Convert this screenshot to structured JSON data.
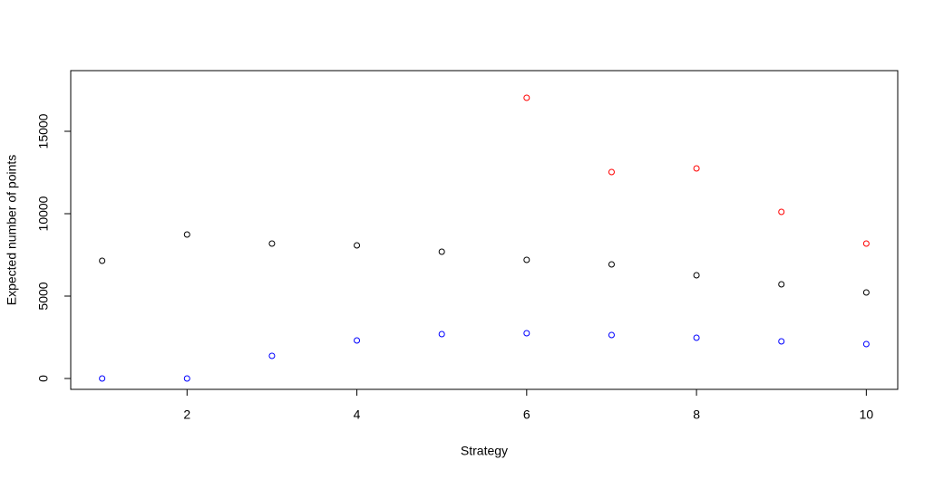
{
  "chart_data": {
    "type": "scatter",
    "x_label": "Strategy",
    "y_label": "Expected number of points",
    "x": [
      1,
      2,
      3,
      4,
      5,
      6,
      7,
      8,
      9,
      10
    ],
    "series": [
      {
        "color": "#000000",
        "values": [
          7143,
          8736,
          8187,
          8077,
          7692,
          7198,
          6923,
          6264,
          5714,
          5220
        ]
      },
      {
        "color": "#0000ff",
        "values": [
          0,
          0,
          1374,
          2308,
          2692,
          2747,
          2637,
          2473,
          2253,
          2088
        ]
      },
      {
        "color": "#ff0000",
        "values": [
          null,
          null,
          null,
          null,
          null,
          17033,
          12527,
          12747,
          10110,
          8187
        ]
      }
    ],
    "xlim": [
      0.63,
      10.37
    ],
    "ylim": [
      -659,
      18681
    ],
    "xticks": [
      2,
      4,
      6,
      8,
      10
    ],
    "yticks": [
      0,
      5000,
      10000,
      15000
    ]
  }
}
